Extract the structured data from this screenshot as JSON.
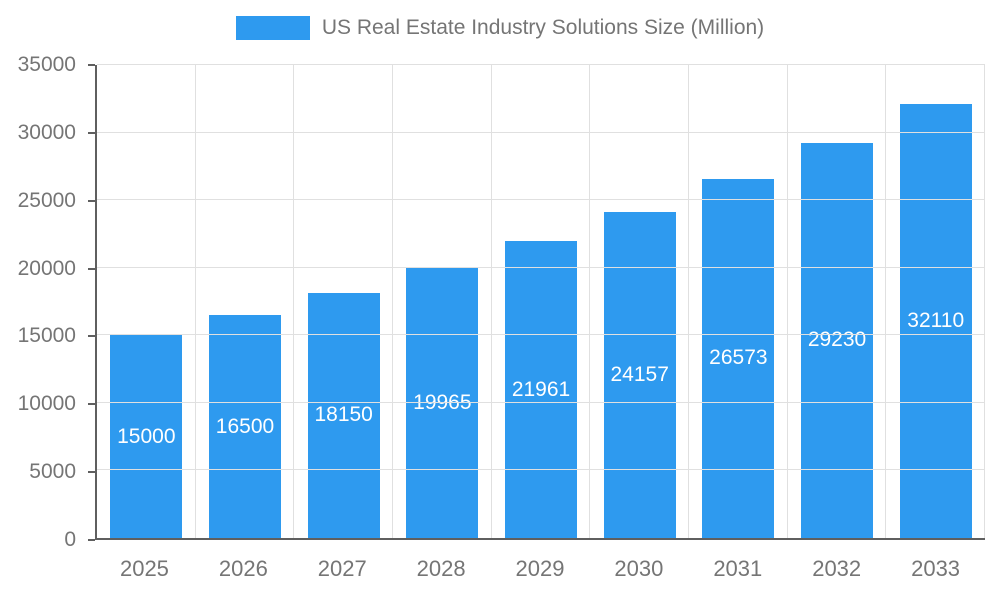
{
  "chart_data": {
    "type": "bar",
    "title": "US Real Estate Industry Solutions Size (Million)",
    "legend_label": "US Real Estate Industry Solutions Size (Million)",
    "legend_position": "top",
    "categories": [
      "2025",
      "2026",
      "2027",
      "2028",
      "2029",
      "2030",
      "2031",
      "2032",
      "2033"
    ],
    "values": [
      15000,
      16500,
      18150,
      19965,
      21961,
      24157,
      26573,
      29230,
      32110
    ],
    "value_labels": [
      "15000",
      "16500",
      "18150",
      "19965",
      "21961",
      "24157",
      "26573",
      "29230",
      "32110"
    ],
    "xlabel": "",
    "ylabel": "",
    "ylim": [
      0,
      35000
    ],
    "yticks": [
      0,
      5000,
      10000,
      15000,
      20000,
      25000,
      30000,
      35000
    ],
    "grid": true,
    "bar_color": "#2E9AEF",
    "bar_label_color": "#ffffff",
    "axis_text_color": "#757575",
    "axis_line_color": "#5f5f5f",
    "grid_color": "#e0e0e0",
    "background_color": "#ffffff"
  }
}
